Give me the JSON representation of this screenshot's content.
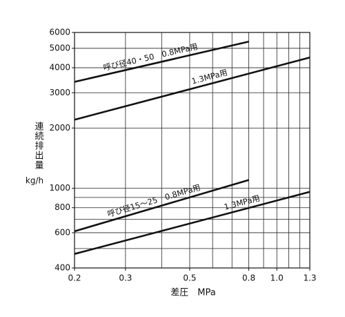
{
  "chart_data": {
    "type": "line",
    "y_label": "連続排出量",
    "y_unit": "kg/h",
    "x_label": "差圧　MPa",
    "xlog": true,
    "ylog": true,
    "grid": true,
    "color": "#111111",
    "xlim": [
      0.2,
      1.3
    ],
    "ylim": [
      400,
      6000
    ],
    "xticks": [
      0.2,
      0.3,
      0.5,
      0.8,
      {
        "value": 1,
        "label": "1.0"
      },
      1.3
    ],
    "yticks": [
      400,
      600,
      800,
      1000,
      2000,
      3000,
      4000,
      5000,
      6000
    ],
    "xgrid": [
      0.2,
      0.3,
      0.4,
      0.5,
      0.6,
      0.7,
      0.8,
      0.9,
      1,
      1.1,
      1.2,
      1.3
    ],
    "ygrid": [
      400,
      500,
      600,
      700,
      800,
      900,
      1000,
      2000,
      3000,
      4000,
      5000,
      6000
    ],
    "series": [
      {
        "name": "呼び径40・50　0.8MPa用",
        "x": [
          0.2,
          0.8
        ],
        "values": [
          3400,
          5400
        ]
      },
      {
        "name": "1.3MPa用",
        "x": [
          0.2,
          1.3
        ],
        "values": [
          2200,
          4500
        ]
      },
      {
        "name": "呼び径15〜25　0.8MPa用",
        "x": [
          0.2,
          0.8
        ],
        "values": [
          610,
          1100
        ]
      },
      {
        "name": "1.3MPa用",
        "x": [
          0.2,
          1.3
        ],
        "values": [
          470,
          960
        ]
      }
    ]
  }
}
